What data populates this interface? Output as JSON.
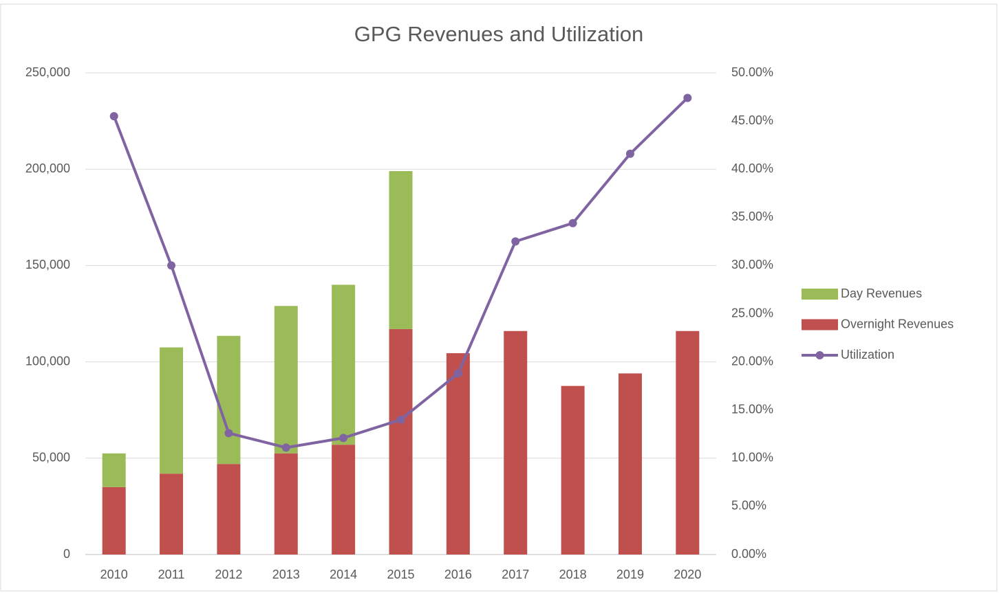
{
  "chart_data": {
    "type": "bar_line_combo",
    "title": "GPG Revenues and Utilization",
    "categories": [
      "2010",
      "2011",
      "2012",
      "2013",
      "2014",
      "2015",
      "2016",
      "2017",
      "2018",
      "2019",
      "2020"
    ],
    "series": [
      {
        "name": "Day Revenues",
        "type": "bar",
        "color": "#9bbb59",
        "values": [
          17500,
          65500,
          66500,
          76500,
          83000,
          82000,
          0,
          0,
          0,
          0,
          0
        ]
      },
      {
        "name": "Overnight Revenues",
        "type": "bar",
        "color": "#c0504d",
        "values": [
          35000,
          42000,
          47000,
          52500,
          57000,
          117000,
          104500,
          116000,
          87500,
          94000,
          116000
        ]
      },
      {
        "name": "Utilization",
        "type": "line",
        "axis": "y2",
        "color": "#8064a2",
        "values": [
          45.5,
          30.0,
          12.6,
          11.1,
          12.1,
          14.0,
          18.8,
          32.5,
          34.4,
          41.6,
          47.4
        ]
      }
    ],
    "stacked": true,
    "ylim": [
      0,
      250000
    ],
    "yticks": [
      0,
      {
        "value": 50000,
        "label": "50,000"
      },
      {
        "value": 100000,
        "label": "100,000"
      },
      {
        "value": 150000,
        "label": "150,000"
      },
      {
        "value": 200000,
        "label": "200,000"
      },
      {
        "value": 250000,
        "label": "250,000"
      }
    ],
    "y2lim": [
      0,
      50
    ],
    "y2ticks": [
      {
        "value": 0,
        "label": "0.00%"
      },
      {
        "value": 5,
        "label": "5.00%"
      },
      {
        "value": 10,
        "label": "10.00%"
      },
      {
        "value": 15,
        "label": "15.00%"
      },
      {
        "value": 20,
        "label": "20.00%"
      },
      {
        "value": 25,
        "label": "25.00%"
      },
      {
        "value": 30,
        "label": "30.00%"
      },
      {
        "value": 35,
        "label": "35.00%"
      },
      {
        "value": 40,
        "label": "40.00%"
      },
      {
        "value": 45,
        "label": "45.00%"
      },
      {
        "value": 50,
        "label": "50.00%"
      }
    ],
    "grid": true,
    "legend": "right"
  }
}
